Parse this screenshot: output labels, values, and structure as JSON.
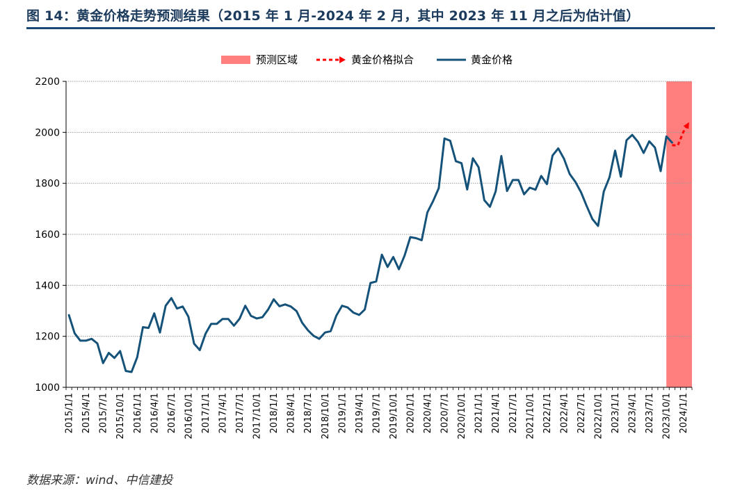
{
  "figure": {
    "title": "图 14：黄金价格走势预测结果（2015 年 1 月-2024 年 2 月，其中 2023 年 11 月之后为估计值）",
    "source": "数据来源：wind、中信建投"
  },
  "colors": {
    "title": "#1b3a5c",
    "rule": "#174a78",
    "price_line": "#15527a",
    "forecast_line": "#ff0000",
    "forecast_region": "#ff7f7f"
  },
  "chart_data": {
    "type": "line",
    "title": "",
    "ylim": [
      1000,
      2200
    ],
    "yticks": [
      1000,
      1200,
      1400,
      1600,
      1800,
      2000,
      2200
    ],
    "grid": true,
    "legend_placement": "top-center",
    "legend": [
      "预测区域",
      "黄金价格拟合",
      "黄金价格"
    ],
    "x_tick_labels": [
      "2015/1/1",
      "2015/4/1",
      "2015/7/1",
      "2015/10/1",
      "2016/1/1",
      "2016/4/1",
      "2016/7/1",
      "2016/10/1",
      "2017/1/1",
      "2017/4/1",
      "2017/7/1",
      "2017/10/1",
      "2018/1/1",
      "2018/4/1",
      "2018/7/1",
      "2018/10/1",
      "2019/1/1",
      "2019/4/1",
      "2019/7/1",
      "2019/10/1",
      "2020/1/1",
      "2020/4/1",
      "2020/7/1",
      "2020/10/1",
      "2021/1/1",
      "2021/4/1",
      "2021/7/1",
      "2021/10/1",
      "2022/1/1",
      "2022/4/1",
      "2022/7/1",
      "2022/10/1",
      "2023/1/1",
      "2023/4/1",
      "2023/7/1",
      "2023/10/1",
      "2024/1/1"
    ],
    "x_start": "2015-01",
    "x_end": "2024-02",
    "forecast_region": {
      "name": "预测区域",
      "from": "2023-11",
      "to": "2024-02"
    },
    "series": [
      {
        "name": "黄金价格",
        "x": [
          "2015-01",
          "2015-02",
          "2015-03",
          "2015-04",
          "2015-05",
          "2015-06",
          "2015-07",
          "2015-08",
          "2015-09",
          "2015-10",
          "2015-11",
          "2015-12",
          "2016-01",
          "2016-02",
          "2016-03",
          "2016-04",
          "2016-05",
          "2016-06",
          "2016-07",
          "2016-08",
          "2016-09",
          "2016-10",
          "2016-11",
          "2016-12",
          "2017-01",
          "2017-02",
          "2017-03",
          "2017-04",
          "2017-05",
          "2017-06",
          "2017-07",
          "2017-08",
          "2017-09",
          "2017-10",
          "2017-11",
          "2017-12",
          "2018-01",
          "2018-02",
          "2018-03",
          "2018-04",
          "2018-05",
          "2018-06",
          "2018-07",
          "2018-08",
          "2018-09",
          "2018-10",
          "2018-11",
          "2018-12",
          "2019-01",
          "2019-02",
          "2019-03",
          "2019-04",
          "2019-05",
          "2019-06",
          "2019-07",
          "2019-08",
          "2019-09",
          "2019-10",
          "2019-11",
          "2019-12",
          "2020-01",
          "2020-02",
          "2020-03",
          "2020-04",
          "2020-05",
          "2020-06",
          "2020-07",
          "2020-08",
          "2020-09",
          "2020-10",
          "2020-11",
          "2020-12",
          "2021-01",
          "2021-02",
          "2021-03",
          "2021-04",
          "2021-05",
          "2021-06",
          "2021-07",
          "2021-08",
          "2021-09",
          "2021-10",
          "2021-11",
          "2021-12",
          "2022-01",
          "2022-02",
          "2022-03",
          "2022-04",
          "2022-05",
          "2022-06",
          "2022-07",
          "2022-08",
          "2022-09",
          "2022-10",
          "2022-11",
          "2022-12",
          "2023-01",
          "2023-02",
          "2023-03",
          "2023-04",
          "2023-05",
          "2023-06",
          "2023-07",
          "2023-08",
          "2023-09",
          "2023-10",
          "2023-11"
        ],
        "values": [
          1283,
          1212,
          1183,
          1183,
          1190,
          1172,
          1095,
          1135,
          1115,
          1142,
          1064,
          1060,
          1118,
          1236,
          1233,
          1290,
          1215,
          1320,
          1350,
          1309,
          1317,
          1277,
          1171,
          1146,
          1210,
          1249,
          1249,
          1268,
          1268,
          1242,
          1269,
          1320,
          1280,
          1270,
          1275,
          1305,
          1345,
          1318,
          1325,
          1317,
          1299,
          1253,
          1224,
          1202,
          1190,
          1215,
          1220,
          1281,
          1320,
          1313,
          1293,
          1284,
          1305,
          1409,
          1415,
          1520,
          1472,
          1511,
          1463,
          1517,
          1589,
          1585,
          1577,
          1686,
          1730,
          1781,
          1976,
          1967,
          1887,
          1879,
          1776,
          1898,
          1863,
          1734,
          1708,
          1768,
          1907,
          1770,
          1813,
          1813,
          1757,
          1783,
          1775,
          1829,
          1797,
          1909,
          1937,
          1897,
          1837,
          1806,
          1765,
          1711,
          1660,
          1633,
          1768,
          1824,
          1928,
          1826,
          1969,
          1990,
          1963,
          1919,
          1965,
          1940,
          1848,
          1984,
          1960
        ]
      },
      {
        "name": "黄金价格拟合",
        "x": [
          "2023-11",
          "2023-12",
          "2024-01",
          "2024-02"
        ],
        "values": [
          1950,
          1948,
          2002,
          2040
        ]
      }
    ]
  }
}
